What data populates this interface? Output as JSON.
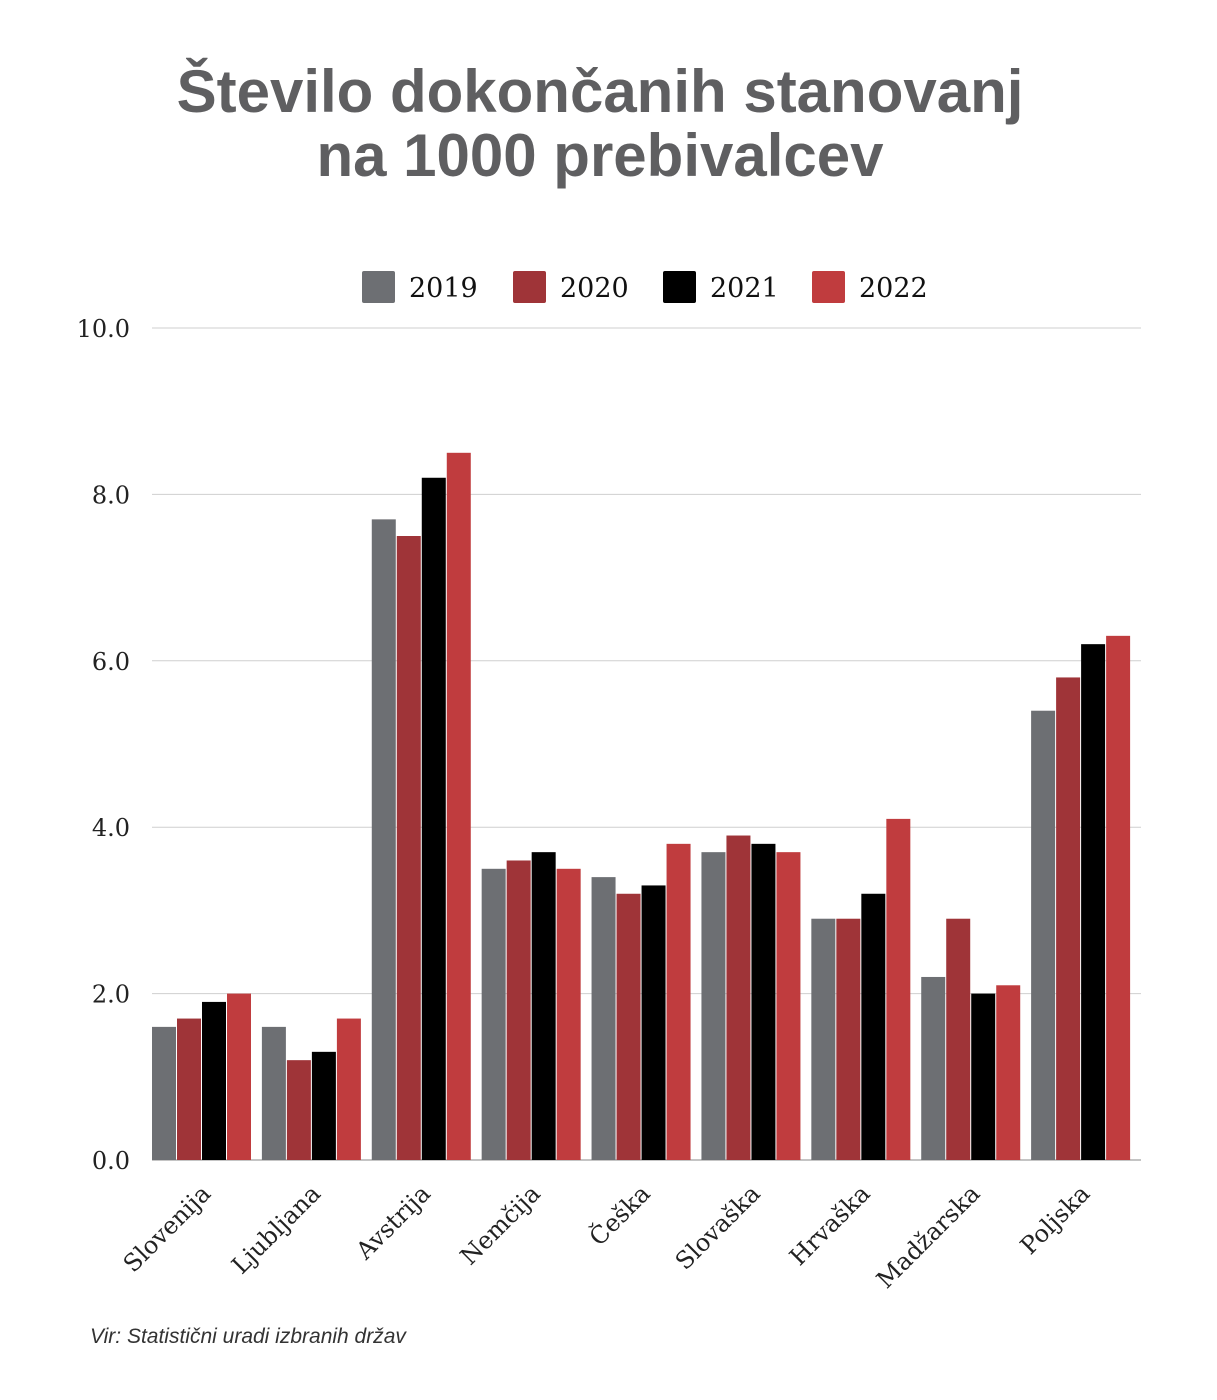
{
  "chart_data": {
    "type": "bar",
    "title": "Število dokončanih stanovanj",
    "title_line2": "na 1000 prebivalcev",
    "categories": [
      "Slovenija",
      "Ljubljana",
      "Avstrija",
      "Nemčija",
      "Češka",
      "Slovaška",
      "Hrvaška",
      "Madžarska",
      "Poljska"
    ],
    "series": [
      {
        "name": "2019",
        "color": "#6d6f73",
        "values": [
          1.6,
          1.6,
          7.7,
          3.5,
          3.4,
          3.7,
          2.9,
          2.2,
          5.4
        ]
      },
      {
        "name": "2020",
        "color": "#9f3438",
        "values": [
          1.7,
          1.2,
          7.5,
          3.6,
          3.2,
          3.9,
          2.9,
          2.9,
          5.8
        ]
      },
      {
        "name": "2021",
        "color": "#000000",
        "values": [
          1.9,
          1.3,
          8.2,
          3.7,
          3.3,
          3.8,
          3.2,
          2.0,
          6.2
        ]
      },
      {
        "name": "2022",
        "color": "#c03c3e",
        "values": [
          2.0,
          1.7,
          8.5,
          3.5,
          3.8,
          3.7,
          4.1,
          2.1,
          6.3
        ]
      }
    ],
    "yticks": [
      "0.0",
      "2.0",
      "4.0",
      "6.0",
      "8.0",
      "10.0"
    ],
    "ylim": [
      0,
      10
    ],
    "grid": true,
    "legend": "top",
    "xlabel": "",
    "ylabel": ""
  },
  "source": "Vir: Statistični uradi izbranih držav"
}
